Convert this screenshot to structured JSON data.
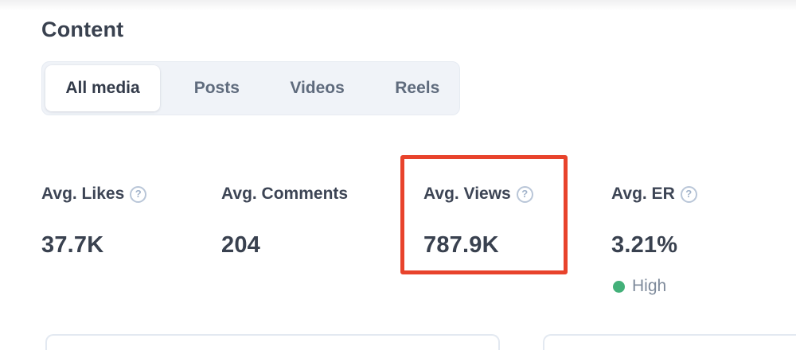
{
  "section": {
    "title": "Content"
  },
  "tabs": [
    {
      "label": "All media",
      "active": true
    },
    {
      "label": "Posts",
      "active": false
    },
    {
      "label": "Videos",
      "active": false
    },
    {
      "label": "Reels",
      "active": false
    }
  ],
  "metrics": [
    {
      "label": "Avg. Likes",
      "value": "37.7K",
      "help_icon": "?"
    },
    {
      "label": "Avg. Comments",
      "value": "204"
    },
    {
      "label": "Avg. Views",
      "value": "787.9K",
      "help_icon": "?",
      "highlighted": true
    },
    {
      "label": "Avg. ER",
      "value": "3.21%",
      "help_icon": "?",
      "badge": {
        "label": "High"
      }
    }
  ],
  "annotation": {
    "type": "highlight-box",
    "target_metric": "Avg. Views",
    "color": "#e8432c"
  },
  "colors": {
    "accent_red": "#e8432c",
    "badge_dot_green": "#43b079",
    "text_dark": "#39414f",
    "text_muted": "#5f6b7d",
    "tab_bar_bg": "#f0f3f8",
    "help_icon_gray_blue": "#b9c6d8"
  }
}
